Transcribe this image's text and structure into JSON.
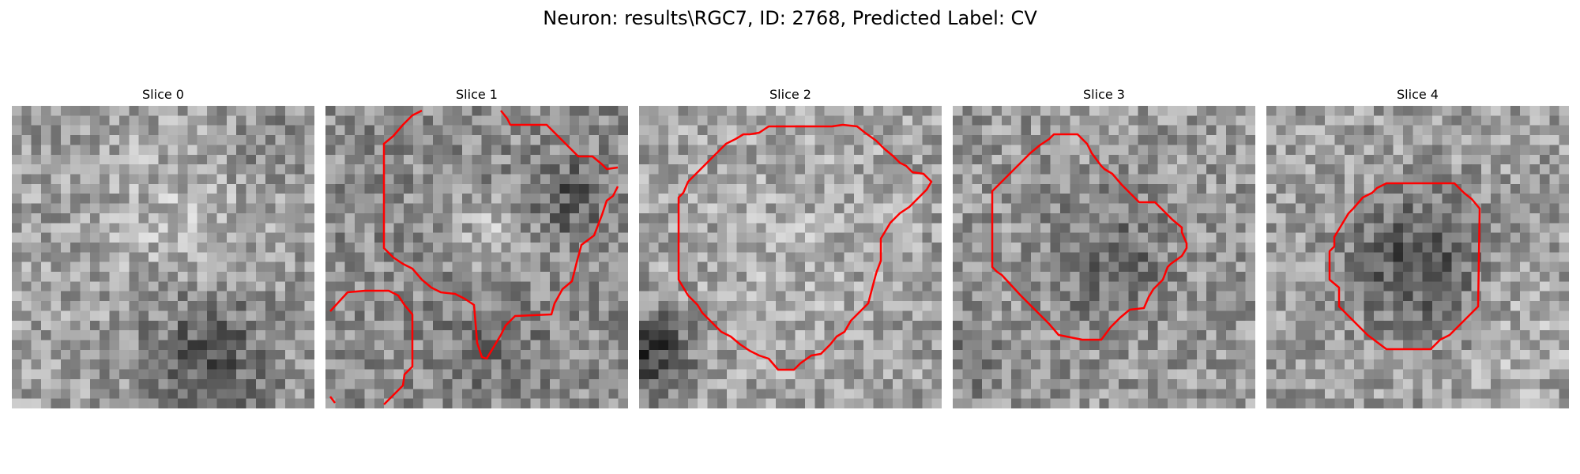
{
  "figure": {
    "title": "Neuron: results\\RGC7, ID: 2768, Predicted Label: CV",
    "contour_color": "#ff0000",
    "colormap": "grayscale"
  },
  "slices": [
    {
      "title": "Slice 0"
    },
    {
      "title": "Slice 1"
    },
    {
      "title": "Slice 2"
    },
    {
      "title": "Slice 3"
    },
    {
      "title": "Slice 4"
    }
  ]
}
